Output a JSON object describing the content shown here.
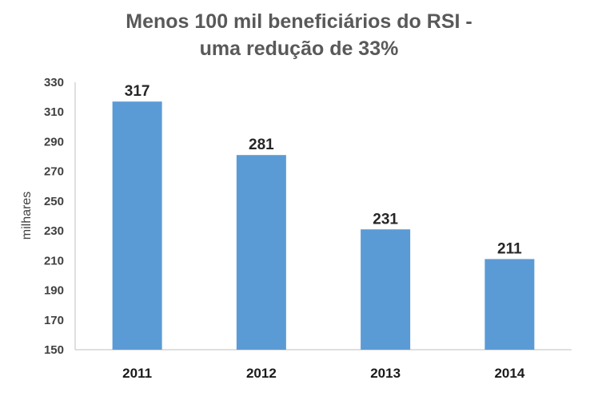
{
  "chart_data": {
    "type": "bar",
    "title_lines": [
      "Menos 100 mil beneficiários do RSI -",
      "uma redução de 33%"
    ],
    "ylabel": "milhares",
    "xlabel": "",
    "categories": [
      "2011",
      "2012",
      "2013",
      "2014"
    ],
    "values": [
      317,
      281,
      231,
      211
    ],
    "data_labels": [
      "317",
      "281",
      "231",
      "211"
    ],
    "ylim": [
      150,
      330
    ],
    "yticks": [
      150,
      170,
      190,
      210,
      230,
      250,
      270,
      290,
      310,
      330
    ],
    "grid": false,
    "legend": "none",
    "bar_color": "#5b9bd5"
  }
}
